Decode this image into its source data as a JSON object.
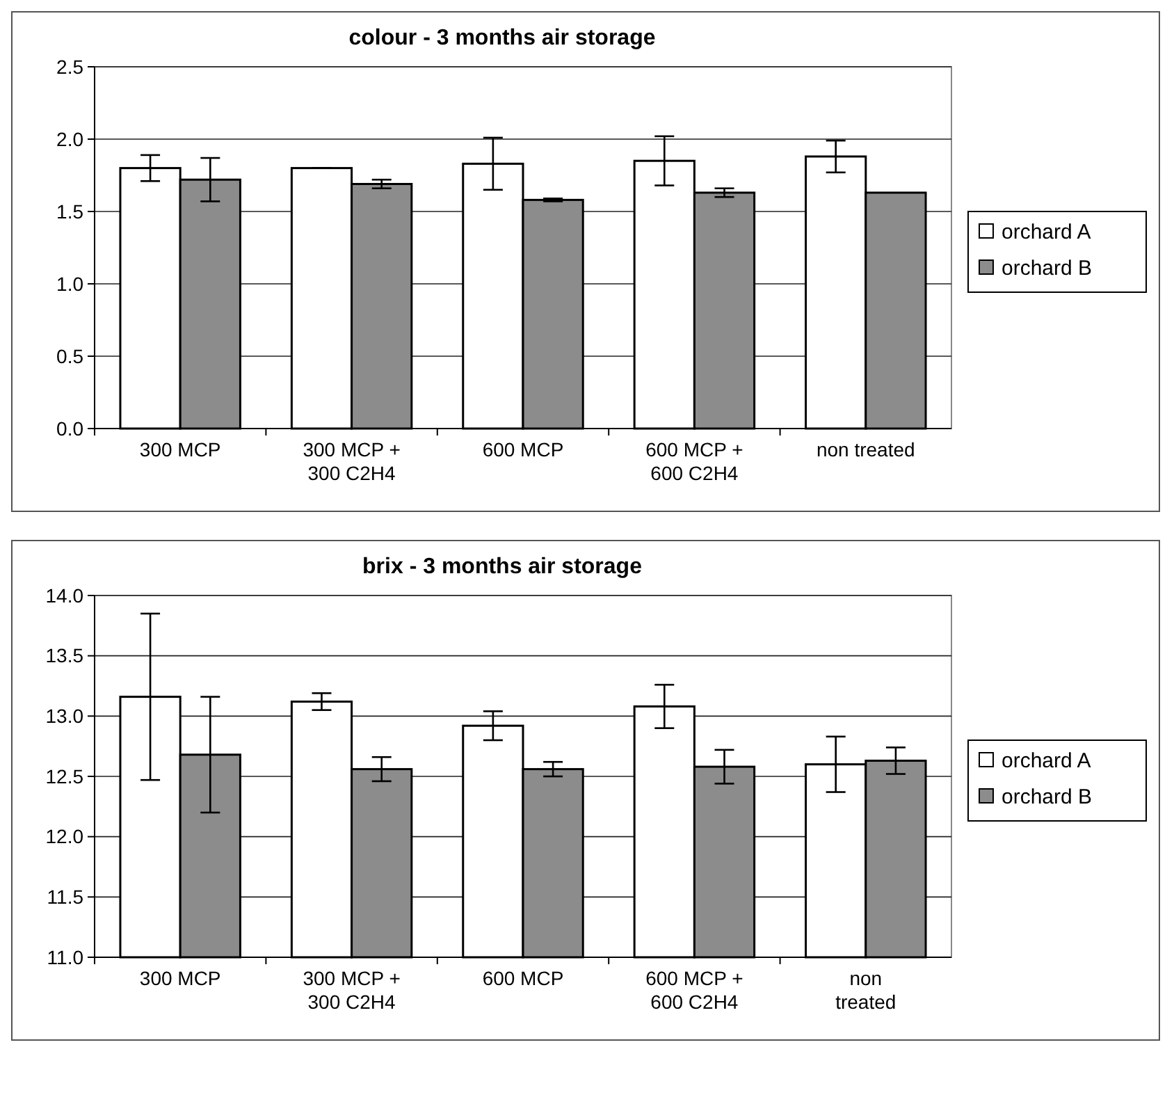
{
  "chart_data": [
    {
      "type": "bar",
      "title": "colour -  3 months air storage",
      "categories": [
        "300 MCP",
        "300 MCP + 300 C2H4",
        "600 MCP",
        "600 MCP + 600 C2H4",
        "non treated"
      ],
      "series": [
        {
          "name": "orchard A",
          "color": "#ffffff",
          "values": [
            1.8,
            1.8,
            1.83,
            1.85,
            1.88
          ],
          "errors": [
            0.09,
            0,
            0.18,
            0.17,
            0.11
          ]
        },
        {
          "name": "orchard B",
          "color": "#8c8c8c",
          "values": [
            1.72,
            1.69,
            1.58,
            1.63,
            1.63
          ],
          "errors": [
            0.15,
            0.03,
            0.01,
            0.03,
            null
          ]
        }
      ],
      "ylim": [
        0,
        2.5
      ],
      "yticks": [
        {
          "value": 0,
          "label": "0.0"
        },
        {
          "value": 0.5,
          "label": "0.5"
        },
        {
          "value": 1,
          "label": "1.0"
        },
        {
          "value": 1.5,
          "label": "1.5"
        },
        {
          "value": 2,
          "label": "2.0"
        },
        {
          "value": 2.5,
          "label": "2.5"
        }
      ],
      "grid": "y",
      "legend": "right"
    },
    {
      "type": "bar",
      "title": "brix -  3 months air storage",
      "categories": [
        "300 MCP",
        "300 MCP + 300 C2H4",
        "600 MCP",
        "600 MCP + 600 C2H4",
        "non treated"
      ],
      "series": [
        {
          "name": "orchard A",
          "color": "#ffffff",
          "values": [
            13.16,
            13.12,
            12.92,
            13.08,
            12.6
          ],
          "errors": [
            0.69,
            0.07,
            0.12,
            0.18,
            0.23
          ]
        },
        {
          "name": "orchard B",
          "color": "#8c8c8c",
          "values": [
            12.68,
            12.56,
            12.56,
            12.58,
            12.63
          ],
          "errors": [
            0.48,
            0.1,
            0.06,
            0.14,
            0.11
          ]
        }
      ],
      "ylim": [
        11,
        14
      ],
      "yticks": [
        {
          "value": 11,
          "label": "11.0"
        },
        {
          "value": 11.5,
          "label": "11.5"
        },
        {
          "value": 12,
          "label": "12.0"
        },
        {
          "value": 12.5,
          "label": "12.5"
        },
        {
          "value": 13,
          "label": "13.0"
        },
        {
          "value": 13.5,
          "label": "13.5"
        },
        {
          "value": 14,
          "label": "14.0"
        }
      ],
      "grid": "y",
      "legend": "right"
    }
  ]
}
